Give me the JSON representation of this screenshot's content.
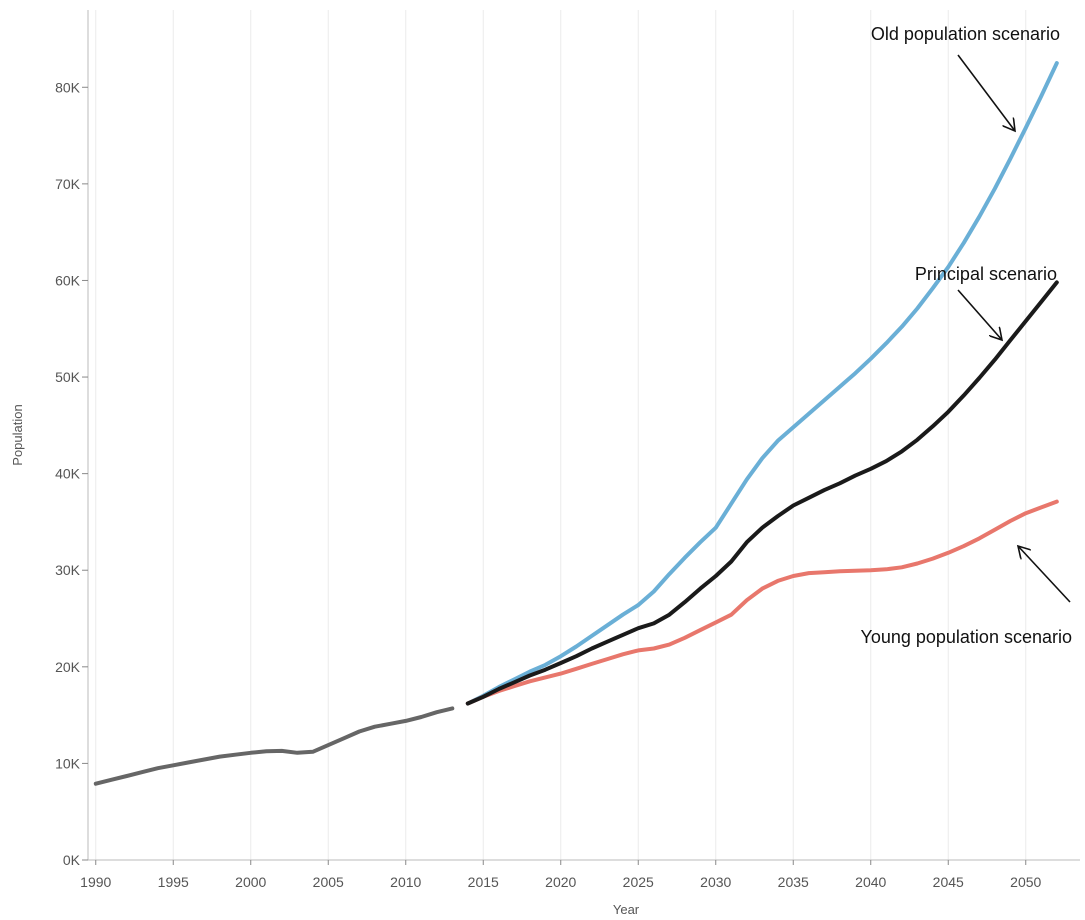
{
  "chart_data": {
    "type": "line",
    "title": "",
    "xlabel": "Year",
    "ylabel": "Population",
    "xlim": [
      1989.5,
      2053.5
    ],
    "ylim": [
      0,
      88000
    ],
    "x_ticks": [
      1990,
      1995,
      2000,
      2005,
      2010,
      2015,
      2020,
      2025,
      2030,
      2035,
      2040,
      2045,
      2050
    ],
    "y_ticks": [
      0,
      10000,
      20000,
      30000,
      40000,
      50000,
      60000,
      70000,
      80000
    ],
    "y_tick_labels": [
      "0K",
      "10K",
      "20K",
      "30K",
      "40K",
      "50K",
      "60K",
      "70K",
      "80K"
    ],
    "grid": true,
    "series": [
      {
        "color": "#666666",
        "x": [
          1990,
          1991,
          1992,
          1993,
          1994,
          1995,
          1996,
          1997,
          1998,
          1999,
          2000,
          2001,
          2002,
          2003,
          2004,
          2005,
          2006,
          2007,
          2008,
          2009,
          2010,
          2011,
          2012,
          2013
        ],
        "values": [
          7900,
          8300,
          8700,
          9100,
          9500,
          9800,
          10100,
          10400,
          10700,
          10900,
          11100,
          11250,
          11300,
          11100,
          11200,
          11900,
          12600,
          13300,
          13800,
          14100,
          14400,
          14800,
          15300,
          15700
        ]
      },
      {
        "color": "#6aafd6",
        "x": [
          2014,
          2015,
          2016,
          2017,
          2018,
          2019,
          2020,
          2021,
          2022,
          2023,
          2024,
          2025,
          2026,
          2027,
          2028,
          2029,
          2030,
          2031,
          2032,
          2033,
          2034,
          2035,
          2036,
          2037,
          2038,
          2039,
          2040,
          2041,
          2042,
          2043,
          2044,
          2045,
          2046,
          2047,
          2048,
          2049,
          2050,
          2051,
          2052
        ],
        "values": [
          16200,
          17000,
          17900,
          18700,
          19500,
          20200,
          21100,
          22100,
          23200,
          24300,
          25400,
          26400,
          27800,
          29600,
          31300,
          32900,
          34400,
          36900,
          39400,
          41600,
          43400,
          44800,
          46200,
          47600,
          49000,
          50400,
          51900,
          53500,
          55200,
          57100,
          59200,
          61400,
          63900,
          66600,
          69500,
          72600,
          75800,
          79100,
          82500
        ]
      },
      {
        "color": "#1a1a1a",
        "x": [
          2014,
          2015,
          2016,
          2017,
          2018,
          2019,
          2020,
          2021,
          2022,
          2023,
          2024,
          2025,
          2026,
          2027,
          2028,
          2029,
          2030,
          2031,
          2032,
          2033,
          2034,
          2035,
          2036,
          2037,
          2038,
          2039,
          2040,
          2041,
          2042,
          2043,
          2044,
          2045,
          2046,
          2047,
          2048,
          2049,
          2050,
          2051,
          2052
        ],
        "values": [
          16200,
          16900,
          17700,
          18400,
          19100,
          19700,
          20400,
          21100,
          21900,
          22600,
          23300,
          24000,
          24500,
          25400,
          26700,
          28100,
          29400,
          30900,
          32900,
          34400,
          35600,
          36700,
          37500,
          38300,
          39000,
          39800,
          40500,
          41300,
          42300,
          43500,
          44900,
          46400,
          48100,
          49900,
          51800,
          53800,
          55800,
          57800,
          59800
        ]
      },
      {
        "color": "#e8776c",
        "x": [
          2014,
          2015,
          2016,
          2017,
          2018,
          2019,
          2020,
          2021,
          2022,
          2023,
          2024,
          2025,
          2026,
          2027,
          2028,
          2029,
          2030,
          2031,
          2032,
          2033,
          2034,
          2035,
          2036,
          2037,
          2038,
          2039,
          2040,
          2041,
          2042,
          2043,
          2044,
          2045,
          2046,
          2047,
          2048,
          2049,
          2050,
          2051,
          2052
        ],
        "values": [
          16200,
          16900,
          17500,
          18000,
          18500,
          18900,
          19300,
          19800,
          20300,
          20800,
          21300,
          21700,
          21900,
          22300,
          23000,
          23800,
          24600,
          25400,
          26900,
          28100,
          28900,
          29400,
          29700,
          29800,
          29900,
          29950,
          30000,
          30100,
          30300,
          30700,
          31200,
          31800,
          32500,
          33300,
          34200,
          35100,
          35900,
          36500,
          37100
        ]
      }
    ],
    "annotations": [
      "Old population scenario",
      "Principal scenario",
      "Young population scenario"
    ]
  }
}
